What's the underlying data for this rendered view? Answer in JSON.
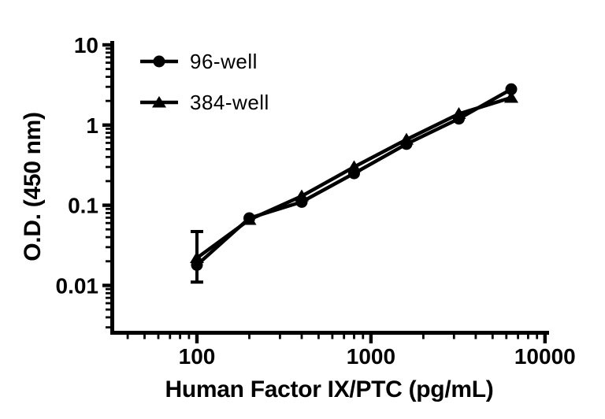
{
  "figure": {
    "background_color": "#ffffff",
    "ink_color": "#000000"
  },
  "chart_data": {
    "type": "line",
    "x_scale": "log",
    "y_scale": "log",
    "title": "",
    "xlabel": "Human Factor IX/PTC (pg/mL)",
    "ylabel": "O.D. (450 nm)",
    "x": [
      100,
      200,
      400,
      800,
      1600,
      3200,
      6400
    ],
    "series": [
      {
        "name": "96-well",
        "marker": "circle",
        "color": "#000000",
        "values": [
          0.018,
          0.069,
          0.11,
          0.25,
          0.58,
          1.2,
          2.8
        ]
      },
      {
        "name": "384-well",
        "marker": "triangle",
        "color": "#000000",
        "values": [
          0.022,
          0.066,
          0.13,
          0.3,
          0.66,
          1.38,
          2.2
        ]
      }
    ],
    "error_bars": [
      {
        "series": "96-well",
        "x": 100,
        "low": 0.011,
        "high": 0.047
      }
    ],
    "x_ticks": [
      100,
      1000,
      10000
    ],
    "y_ticks": [
      10,
      1,
      0.1,
      0.01
    ],
    "xlim": [
      31,
      10500
    ],
    "ylim": [
      0.0026,
      11.2
    ],
    "grid": false,
    "legend_position": "top-left-inside"
  }
}
